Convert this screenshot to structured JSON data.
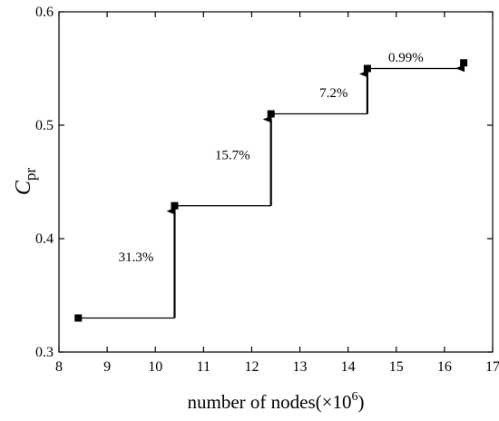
{
  "chart_data": {
    "type": "scatter",
    "xlabel": "number of nodes(×10",
    "xlabel_sup": "6",
    "xlabel_close": ")",
    "ylabel_main": "C",
    "ylabel_sub": "pr",
    "xlim": [
      8,
      17
    ],
    "ylim": [
      0.3,
      0.6
    ],
    "xticks": [
      8,
      9,
      10,
      11,
      12,
      13,
      14,
      15,
      16,
      17
    ],
    "yticks": [
      0.3,
      0.4,
      0.5,
      0.6
    ],
    "ytick_labels": [
      "0.3",
      "0.4",
      "0.5",
      "0.6"
    ],
    "grid": false,
    "marker": "square",
    "color": "#000000",
    "series": [
      {
        "x": [
          8.4,
          10.4,
          12.4,
          14.4,
          16.4
        ],
        "y": [
          0.33,
          0.429,
          0.51,
          0.55,
          0.555
        ]
      }
    ],
    "annotations": [
      {
        "text": "31.3%",
        "x": 9.6,
        "y": 0.38
      },
      {
        "text": "15.7%",
        "x": 11.6,
        "y": 0.47
      },
      {
        "text": "7.2%",
        "x": 13.7,
        "y": 0.525
      },
      {
        "text": "0.99%",
        "x": 15.2,
        "y": 0.556
      }
    ]
  }
}
